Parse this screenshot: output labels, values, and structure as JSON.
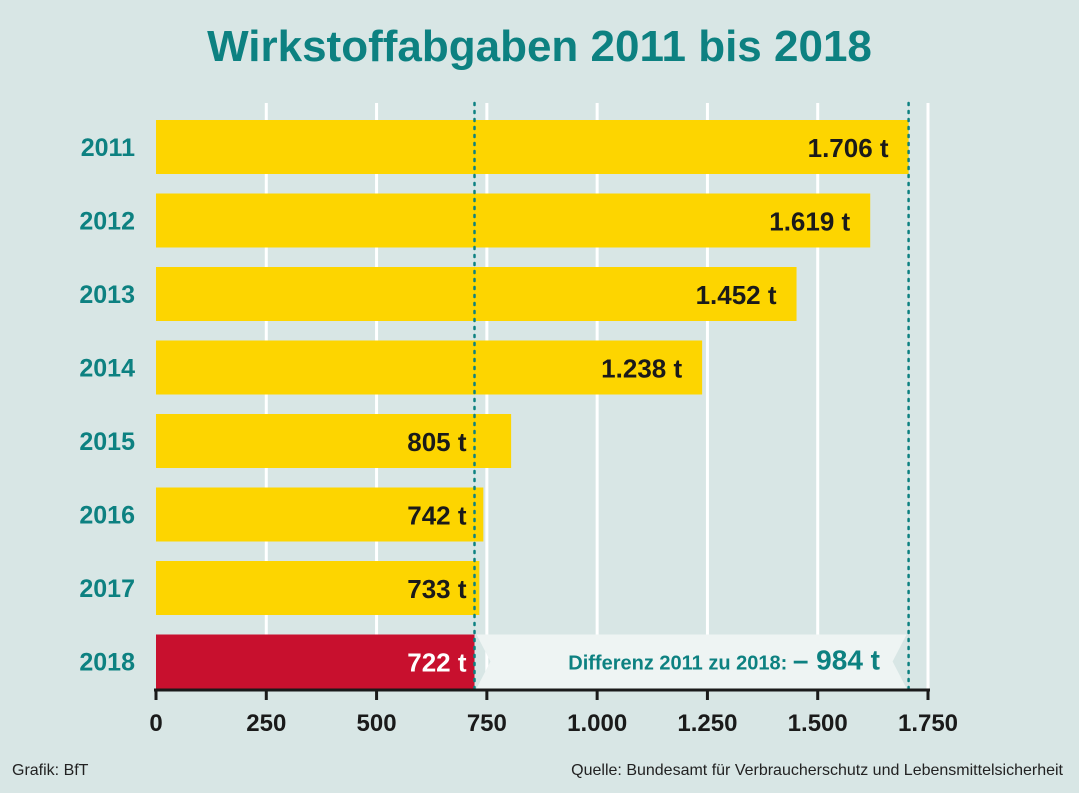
{
  "chart_data": {
    "type": "bar",
    "orientation": "horizontal",
    "title": "Wirkstoffabgaben 2011 bis 2018",
    "categories": [
      "2011",
      "2012",
      "2013",
      "2014",
      "2015",
      "2016",
      "2017",
      "2018"
    ],
    "values": [
      1706,
      1619,
      1452,
      1238,
      805,
      742,
      733,
      722
    ],
    "value_labels": [
      "1.706 t",
      "1.619 t",
      "1.452 t",
      "1.238 t",
      "805 t",
      "742 t",
      "733 t",
      "722 t"
    ],
    "xlim": [
      0,
      1750
    ],
    "xticks": [
      0,
      250,
      500,
      750,
      1000,
      1250,
      1500,
      1750
    ],
    "xtick_labels": [
      "0",
      "250",
      "500",
      "750",
      "1.000",
      "1.250",
      "1.500",
      "1.750"
    ],
    "grid": true,
    "highlight_index": 7,
    "reference_lines": [
      722,
      1706
    ],
    "annotation": {
      "text": "Differenz 2011 zu 2018:",
      "value": "– 984 t"
    }
  },
  "colors": {
    "bar": "#fdd500",
    "highlight_bar": "#c8102e",
    "accent": "#0d8181",
    "background": "#d8e6e5",
    "grid": "#ffffff"
  },
  "footer": {
    "credit": "Grafik: BfT",
    "source": "Quelle: Bundesamt für Verbraucherschutz und Lebensmittelsicherheit"
  }
}
